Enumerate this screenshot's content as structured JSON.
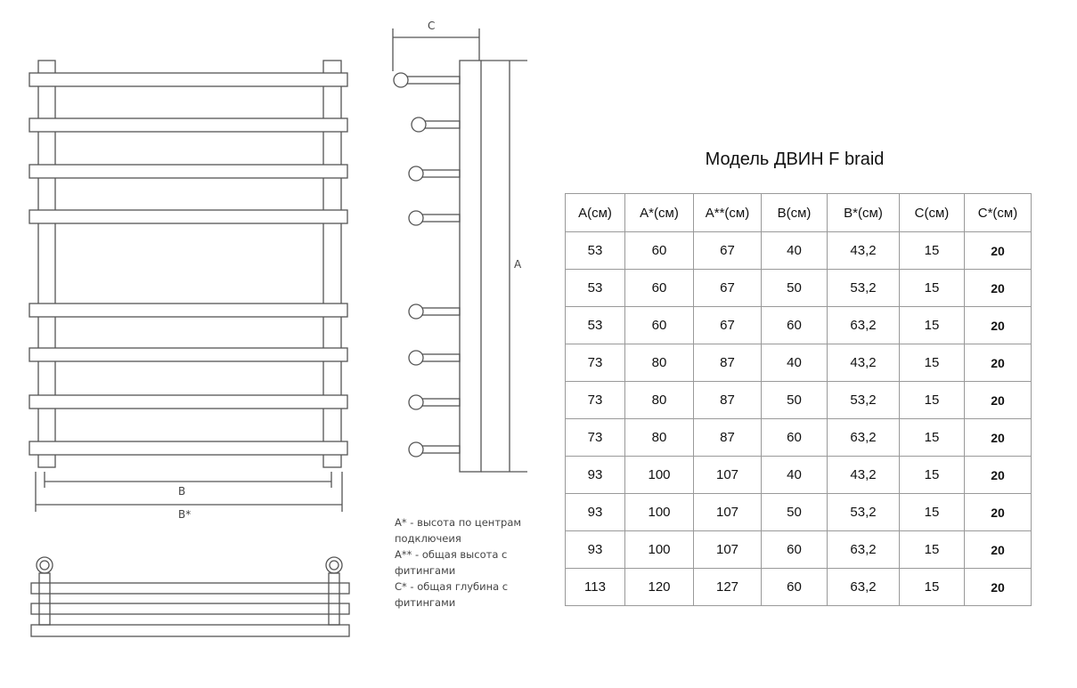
{
  "title": "Модель ДВИН F braid",
  "labels": {
    "B": "B",
    "Bstar": "B*",
    "C": "C",
    "A": "A"
  },
  "notes": [
    "A* - высота по центрам подключеия",
    "A** - общая высота с фитингами",
    "C* - общая глубина с фитингами"
  ],
  "table": {
    "headers": [
      "А(см)",
      "А*(см)",
      "А**(см)",
      "В(см)",
      "В*(см)",
      "С(см)",
      "С*(см)"
    ],
    "rows": [
      [
        "53",
        "60",
        "67",
        "40",
        "43,2",
        "15",
        "20"
      ],
      [
        "53",
        "60",
        "67",
        "50",
        "53,2",
        "15",
        "20"
      ],
      [
        "53",
        "60",
        "67",
        "60",
        "63,2",
        "15",
        "20"
      ],
      [
        "73",
        "80",
        "87",
        "40",
        "43,2",
        "15",
        "20"
      ],
      [
        "73",
        "80",
        "87",
        "50",
        "53,2",
        "15",
        "20"
      ],
      [
        "73",
        "80",
        "87",
        "60",
        "63,2",
        "15",
        "20"
      ],
      [
        "93",
        "100",
        "107",
        "40",
        "43,2",
        "15",
        "20"
      ],
      [
        "93",
        "100",
        "107",
        "50",
        "53,2",
        "15",
        "20"
      ],
      [
        "93",
        "100",
        "107",
        "60",
        "63,2",
        "15",
        "20"
      ],
      [
        "113",
        "120",
        "127",
        "60",
        "63,2",
        "15",
        "20"
      ]
    ]
  }
}
